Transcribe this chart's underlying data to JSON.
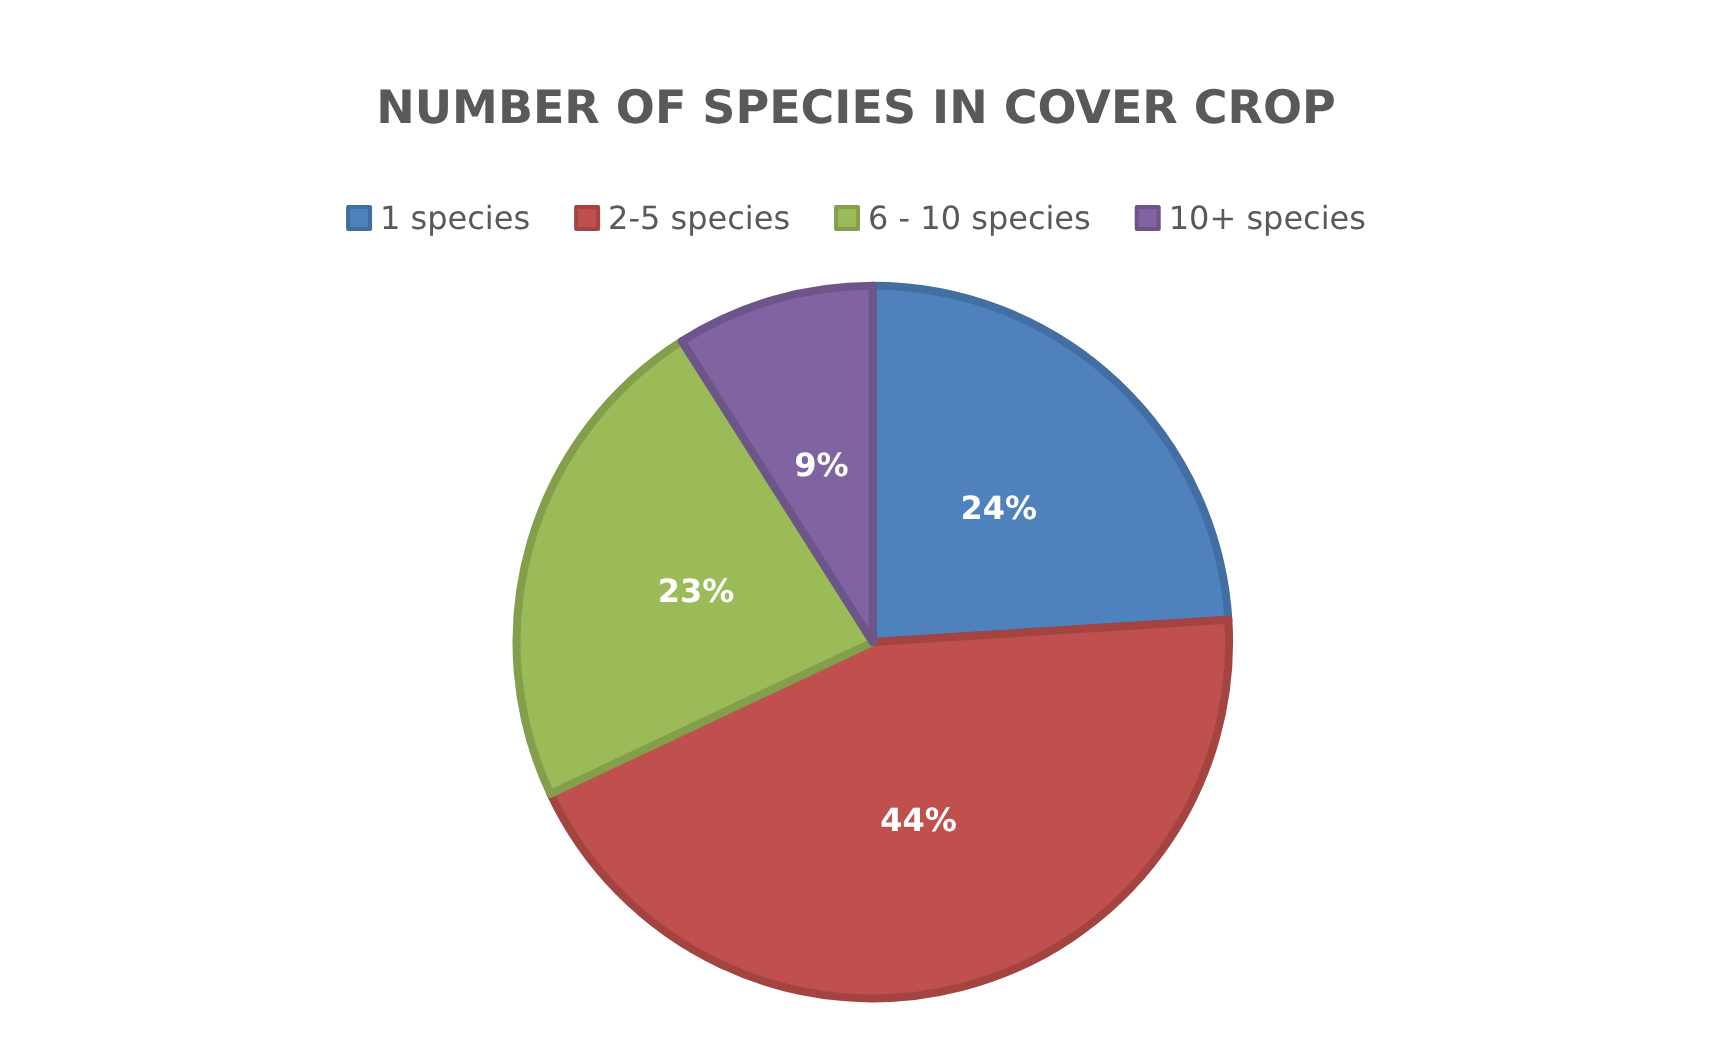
{
  "chart_data": {
    "type": "pie",
    "title": "NUMBER OF SPECIES IN COVER CROP",
    "categories": [
      "1 species",
      "2-5 species",
      "6 - 10 species",
      "10+ species"
    ],
    "values": [
      24,
      44,
      23,
      9
    ],
    "colors": [
      "#4f81bd",
      "#c0504d",
      "#9bbb59",
      "#8064a2"
    ],
    "value_labels": [
      "24%",
      "44%",
      "23%",
      "9%"
    ],
    "legend": "top"
  }
}
